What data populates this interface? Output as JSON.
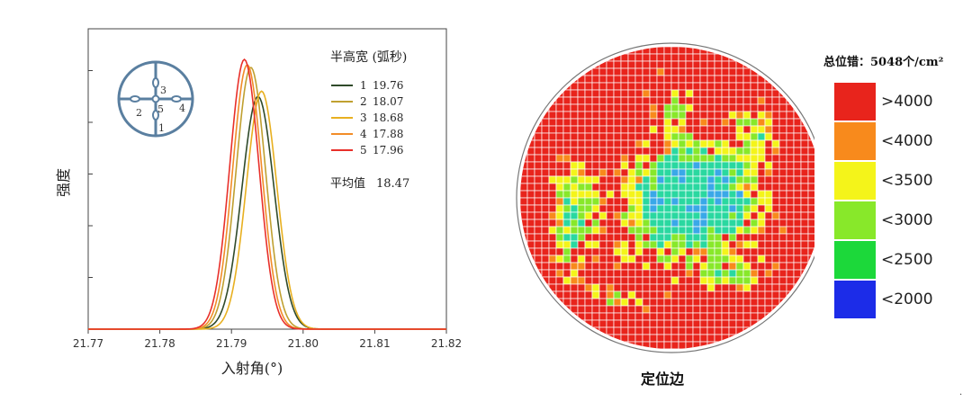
{
  "chart_data": [
    {
      "type": "line",
      "title": "",
      "xlabel": "入射角(°)",
      "ylabel": "强度",
      "xlim": [
        21.77,
        21.82
      ],
      "x_ticks": [
        "21.77",
        "21.78",
        "21.79",
        "21.80",
        "21.81",
        "21.82"
      ],
      "grid": false,
      "legend": {
        "title": "半高宽 (弧秒)",
        "placement": "top-right",
        "average_label": "平均值",
        "average_value": "18.47"
      },
      "series": [
        {
          "name": "1",
          "fwhm": "19.76",
          "color": "#2f4a2a",
          "peak_x": 21.7937,
          "peak_y": 0.88,
          "sigma": 0.00224
        },
        {
          "name": "2",
          "fwhm": "18.07",
          "color": "#c0a030",
          "peak_x": 21.7927,
          "peak_y": 0.99,
          "sigma": 0.00206
        },
        {
          "name": "3",
          "fwhm": "18.68",
          "color": "#e8b020",
          "peak_x": 21.7942,
          "peak_y": 0.9,
          "sigma": 0.00212
        },
        {
          "name": "4",
          "fwhm": "17.88",
          "color": "#f28c28",
          "peak_x": 21.7922,
          "peak_y": 1.0,
          "sigma": 0.00203
        },
        {
          "name": "5",
          "fwhm": "17.96",
          "color": "#e8302a",
          "peak_x": 21.7918,
          "peak_y": 1.02,
          "sigma": 0.00204
        }
      ],
      "inset_positions": [
        "3",
        "2",
        "5",
        "4",
        "1"
      ]
    },
    {
      "type": "heatmap",
      "title": "总位错：5048个/cm²",
      "xlabel": "定位边",
      "shape": "circular wafer",
      "legend_placement": "right",
      "bins": [
        {
          "label": ">4000",
          "color": "#e8241c"
        },
        {
          "label": "<4000",
          "color": "#f88a1c"
        },
        {
          "label": "<3500",
          "color": "#f4f41a"
        },
        {
          "label": "<3000",
          "color": "#88e82a"
        },
        {
          "label": "<2500",
          "color": "#1cd83a"
        },
        {
          "label": "<2000",
          "color": "#1c2ce8"
        }
      ]
    }
  ],
  "footer_mark": "·"
}
